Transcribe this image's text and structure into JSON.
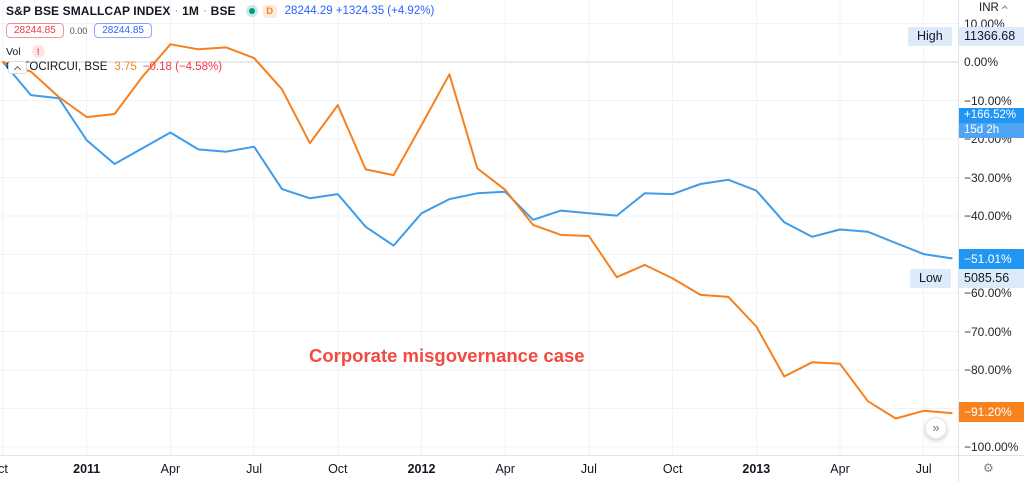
{
  "legend": {
    "title": "S&P BSE SMALLCAP INDEX",
    "separator": "·",
    "interval": "1M",
    "exchange": "BSE",
    "data_badge": "D",
    "price_line": "28244.29 +1324.35 (+4.92%)",
    "tag_open": "28244.85",
    "tag_mid": "0.00",
    "tag_close": "28244.85",
    "vol_label": "Vol",
    "vol_badge": "!",
    "compare_name": "OPTOCIRCUI, BSE",
    "compare_value": "3.75",
    "compare_change": "−0.18 (−4.58%)"
  },
  "annotation": {
    "text": "Corporate misgovernance case",
    "color": "#f5483e"
  },
  "price_axis": {
    "currency": "INR",
    "high_label": "High",
    "high_value": "11366.68",
    "low_label": "Low",
    "low_value": "5085.56",
    "main_badge_value": "+166.52%",
    "main_badge_countdown": "15d 2h",
    "index_badge": "−51.01%",
    "compare_badge": "−91.20%",
    "ticks": [
      {
        "label": "10.00%",
        "pct": 10
      },
      {
        "label": "0.00%",
        "pct": 0
      },
      {
        "label": "−10.00%",
        "pct": -10
      },
      {
        "label": "−20.00%",
        "pct": -20
      },
      {
        "label": "−30.00%",
        "pct": -30
      },
      {
        "label": "−40.00%",
        "pct": -40
      },
      {
        "label": "−60.00%",
        "pct": -60
      },
      {
        "label": "−70.00%",
        "pct": -70
      },
      {
        "label": "−80.00%",
        "pct": -80
      },
      {
        "label": "−100.00%",
        "pct": -100
      }
    ]
  },
  "time_axis": {
    "labels": [
      {
        "label": "ct",
        "i": 0,
        "bold": false
      },
      {
        "label": "2011",
        "i": 3,
        "bold": true
      },
      {
        "label": "Apr",
        "i": 6,
        "bold": false
      },
      {
        "label": "Jul",
        "i": 9,
        "bold": false
      },
      {
        "label": "Oct",
        "i": 12,
        "bold": false
      },
      {
        "label": "2012",
        "i": 15,
        "bold": true
      },
      {
        "label": "Apr",
        "i": 18,
        "bold": false
      },
      {
        "label": "Jul",
        "i": 21,
        "bold": false
      },
      {
        "label": "Oct",
        "i": 24,
        "bold": false
      },
      {
        "label": "2013",
        "i": 27,
        "bold": true
      },
      {
        "label": "Apr",
        "i": 30,
        "bold": false
      },
      {
        "label": "Jul",
        "i": 33,
        "bold": false
      }
    ]
  },
  "goto_latest_glyph": "»",
  "gear_glyph": "⚙",
  "chart_data": {
    "type": "line",
    "unit": "percent change",
    "x": [
      "Oct 2010",
      "Nov 2010",
      "Dec 2010",
      "Jan 2011",
      "Feb 2011",
      "Mar 2011",
      "Apr 2011",
      "May 2011",
      "Jun 2011",
      "Jul 2011",
      "Aug 2011",
      "Sep 2011",
      "Oct 2011",
      "Nov 2011",
      "Dec 2011",
      "Jan 2012",
      "Feb 2012",
      "Mar 2012",
      "Apr 2012",
      "May 2012",
      "Jun 2012",
      "Jul 2012",
      "Aug 2012",
      "Sep 2012",
      "Oct 2012",
      "Nov 2012",
      "Dec 2012",
      "Jan 2013",
      "Feb 2013",
      "Mar 2013",
      "Apr 2013",
      "May 2013",
      "Jun 2013",
      "Jul 2013",
      "Aug 2013"
    ],
    "series": [
      {
        "name": "S&P BSE SMALLCAP INDEX",
        "color": "#3e9ce9",
        "values": [
          0,
          -8.6,
          -9.4,
          -20.3,
          -26.5,
          -22.4,
          -18.3,
          -22.7,
          -23.3,
          -22.0,
          -33.0,
          -35.4,
          -34.3,
          -42.8,
          -47.7,
          -39.3,
          -35.6,
          -34.1,
          -33.7,
          -41.0,
          -38.6,
          -39.3,
          -39.9,
          -34.1,
          -34.3,
          -31.7,
          -30.6,
          -33.4,
          -41.6,
          -45.4,
          -43.5,
          -44.1,
          -47.0,
          -49.9,
          -51.0
        ]
      },
      {
        "name": "OPTOCIRCUI (Opto Circuits), BSE",
        "color": "#f7801d",
        "values": [
          0,
          -2.5,
          -9.1,
          -14.3,
          -13.5,
          -3.8,
          4.6,
          3.3,
          3.8,
          1.0,
          -7.1,
          -21.1,
          -11.2,
          -27.9,
          -29.4,
          -16.4,
          -3.2,
          -27.6,
          -33.2,
          -42.3,
          -44.9,
          -45.2,
          -55.9,
          -52.7,
          -56.2,
          -60.5,
          -61.0,
          -68.7,
          -81.7,
          -78.0,
          -78.4,
          -88.1,
          -92.6,
          -90.6,
          -91.2
        ]
      }
    ],
    "ylim": [
      -100,
      10
    ],
    "y_gridlines_pct": [
      10,
      0,
      -10,
      -20,
      -30,
      -40,
      -50,
      -60,
      -70,
      -80,
      -90,
      -100
    ],
    "grid": true,
    "legend_position": "top-left",
    "annotations": [
      "Corporate misgovernance case"
    ]
  }
}
